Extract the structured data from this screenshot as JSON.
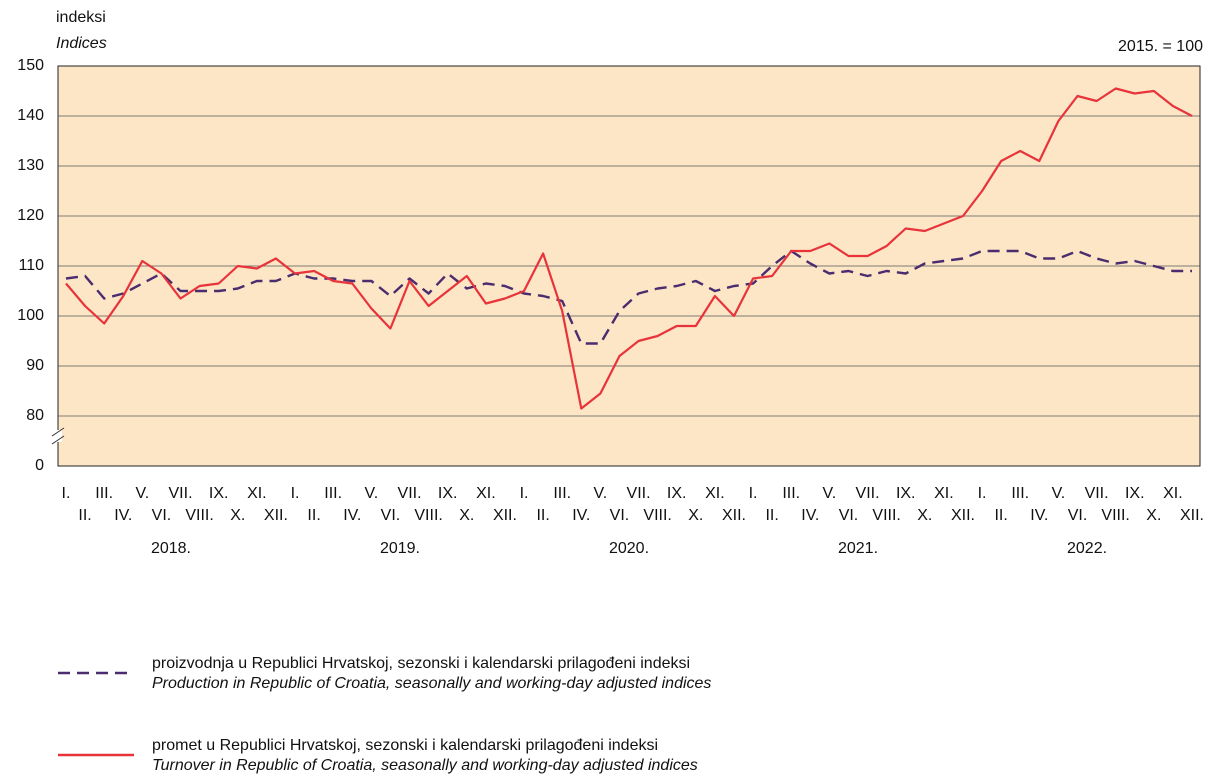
{
  "chart_data": {
    "type": "line",
    "y_unit_label": "indeksi",
    "y_unit_label_en": "Indices",
    "base_note": "2015. = 100",
    "categories": [
      "I.",
      "II.",
      "III.",
      "IV.",
      "V.",
      "VI.",
      "VII.",
      "VIII.",
      "IX.",
      "X.",
      "XI.",
      "XII.",
      "I.",
      "II.",
      "III.",
      "IV.",
      "V.",
      "VI.",
      "VII.",
      "VIII.",
      "IX.",
      "X.",
      "XI.",
      "XII.",
      "I.",
      "II.",
      "III.",
      "IV.",
      "V.",
      "VI.",
      "VII.",
      "VIII.",
      "IX.",
      "X.",
      "XI.",
      "XII.",
      "I.",
      "II.",
      "III.",
      "IV.",
      "V.",
      "VI.",
      "VII.",
      "VIII.",
      "IX.",
      "X.",
      "XI.",
      "XII.",
      "I.",
      "II.",
      "III.",
      "IV.",
      "V.",
      "VI.",
      "VII.",
      "VIII.",
      "IX.",
      "X.",
      "XI.",
      "XII."
    ],
    "years": [
      "2018.",
      "2019.",
      "2020.",
      "2021.",
      "2022."
    ],
    "ylim": [
      0,
      150
    ],
    "y_break": [
      0,
      70
    ],
    "yticks": [
      0,
      80,
      90,
      100,
      110,
      120,
      130,
      140,
      150
    ],
    "grid": true,
    "background": "#fce6c6",
    "series": [
      {
        "name": "proizvodnja u Republici Hrvatskoj, sezonski i kalendarski prilagođeni indeksi",
        "name_en": "Production in Republic of Croatia, seasonally and working-day adjusted indices",
        "color": "#4b2c6e",
        "dashed": true,
        "values": [
          107.5,
          108,
          103.5,
          104.5,
          106.5,
          108.5,
          105,
          105,
          105,
          105.5,
          107,
          107,
          108.5,
          107.5,
          107.5,
          107,
          107,
          104,
          107.5,
          104.5,
          108.5,
          105.5,
          106.5,
          106,
          104.5,
          104,
          103,
          94.5,
          94.5,
          101,
          104.5,
          105.5,
          106,
          107,
          105,
          106,
          106.5,
          110,
          113,
          110.5,
          108.5,
          109,
          108,
          109,
          108.5,
          110.5,
          111,
          111.5,
          113,
          113,
          113,
          111.5,
          111.5,
          113,
          111.5,
          110.5,
          111,
          110,
          109,
          109
        ]
      },
      {
        "name": "promet u Republici Hrvatskoj, sezonski i kalendarski prilagođeni indeksi",
        "name_en": "Turnover in Republic of Croatia, seasonally and working-day adjusted indices",
        "color": "#e8333a",
        "dashed": false,
        "values": [
          106.5,
          102,
          98.5,
          104,
          111,
          108.5,
          103.5,
          106,
          106.5,
          110,
          109.5,
          111.5,
          108.5,
          109,
          107,
          106.5,
          101.5,
          97.5,
          107,
          102,
          105,
          108,
          102.5,
          103.5,
          105,
          112.5,
          101,
          81.5,
          84.5,
          92,
          95,
          96,
          98,
          98,
          104,
          100,
          107.5,
          108,
          113,
          113,
          114.5,
          112,
          112,
          114,
          117.5,
          117,
          118.5,
          120,
          125,
          131,
          133,
          131,
          139,
          144,
          143,
          145.5,
          144.5,
          145,
          142,
          140
        ]
      }
    ]
  }
}
